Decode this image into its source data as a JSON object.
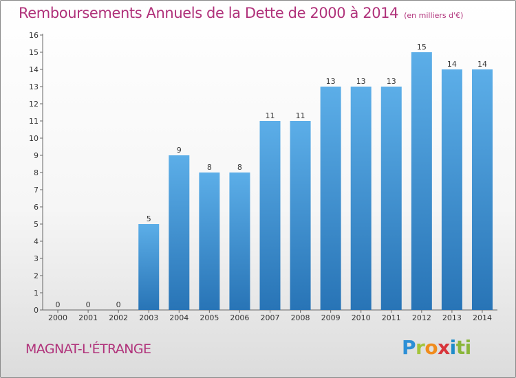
{
  "header": {
    "title": "Remboursements Annuels de la Dette de 2000 à 2014",
    "subtitle": "(en milliers d'€)"
  },
  "footer": {
    "commune": "MAGNAT-L'ÉTRANGE",
    "logo_letters": [
      "P",
      "r",
      "o",
      "x",
      "i",
      "t",
      "i"
    ]
  },
  "colors": {
    "bar_light": "#5caee8",
    "bar_dark": "#2874b6",
    "title": "#b0317a"
  },
  "chart_data": {
    "type": "bar",
    "categories": [
      "2000",
      "2001",
      "2002",
      "2003",
      "2004",
      "2005",
      "2006",
      "2007",
      "2008",
      "2009",
      "2010",
      "2011",
      "2012",
      "2013",
      "2014"
    ],
    "values": [
      0,
      0,
      0,
      5,
      9,
      8,
      8,
      11,
      11,
      13,
      13,
      13,
      15,
      14,
      14
    ],
    "ylim": [
      0,
      16
    ],
    "yticks": [
      0,
      1,
      2,
      3,
      4,
      5,
      6,
      7,
      8,
      9,
      10,
      11,
      12,
      13,
      14,
      15,
      16
    ],
    "grid": false,
    "legend": "none"
  }
}
